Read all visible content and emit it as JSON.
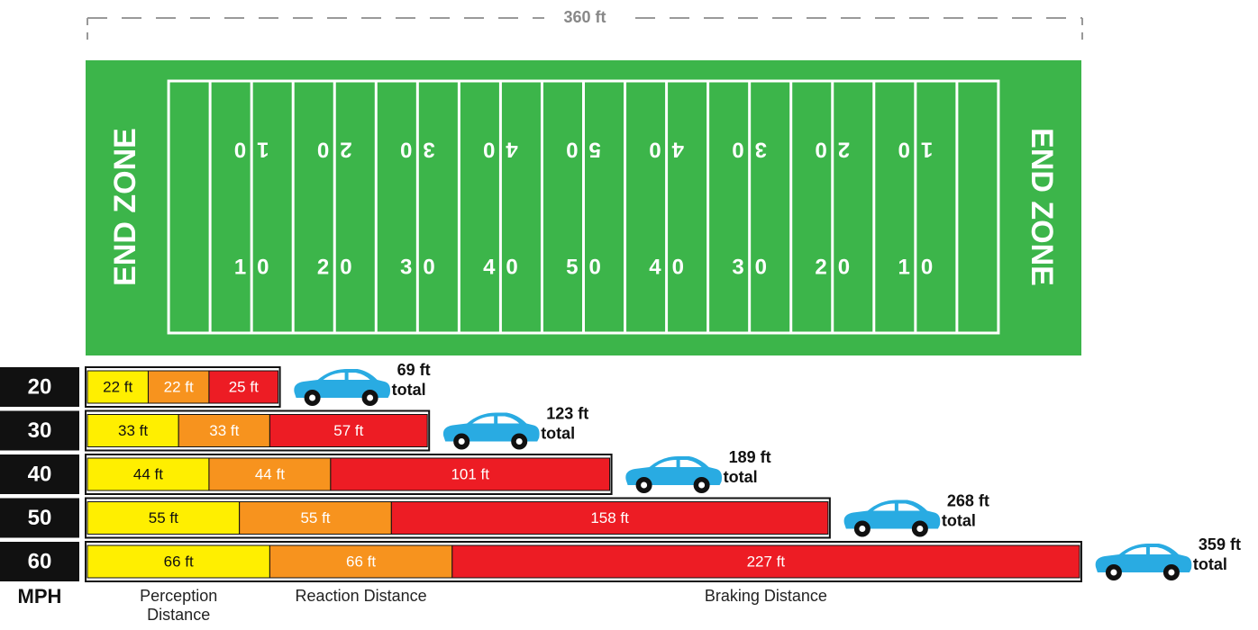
{
  "field": {
    "end_zone_labels": [
      "END ZONE",
      "END ZONE"
    ],
    "yard_numbers": [
      "10",
      "20",
      "30",
      "40",
      "50",
      "40",
      "30",
      "20",
      "10"
    ]
  },
  "chart_data": {
    "type": "bar",
    "orientation": "horizontal",
    "stacked": true,
    "axis_label": "MPH",
    "categories": [
      "20",
      "30",
      "40",
      "50",
      "60"
    ],
    "xlim": [
      0,
      360
    ],
    "xticks": [
      {
        "value": 360,
        "label": "360 ft"
      }
    ],
    "series": [
      {
        "name": "Perception Distance",
        "color": "#ffef00",
        "label_color": "#111111",
        "values": [
          22,
          33,
          44,
          55,
          66
        ],
        "value_labels": [
          "22 ft",
          "33 ft",
          "44 ft",
          "55 ft",
          "66 ft"
        ]
      },
      {
        "name": "Reaction Distance",
        "color": "#f7931e",
        "label_color": "#ffffff",
        "values": [
          22,
          33,
          44,
          55,
          66
        ],
        "value_labels": [
          "22 ft",
          "33 ft",
          "44 ft",
          "55 ft",
          "66 ft"
        ]
      },
      {
        "name": "Braking Distance",
        "color": "#ed1c24",
        "label_color": "#ffffff",
        "values": [
          25,
          57,
          101,
          158,
          227
        ],
        "value_labels": [
          "25 ft",
          "57 ft",
          "101 ft",
          "158 ft",
          "227 ft"
        ]
      }
    ],
    "totals": [
      69,
      123,
      189,
      268,
      359
    ],
    "total_value_labels": [
      "69 ft",
      "123 ft",
      "189 ft",
      "268 ft",
      "359 ft"
    ],
    "total_suffix": "total",
    "total_color": "#29abe2"
  }
}
